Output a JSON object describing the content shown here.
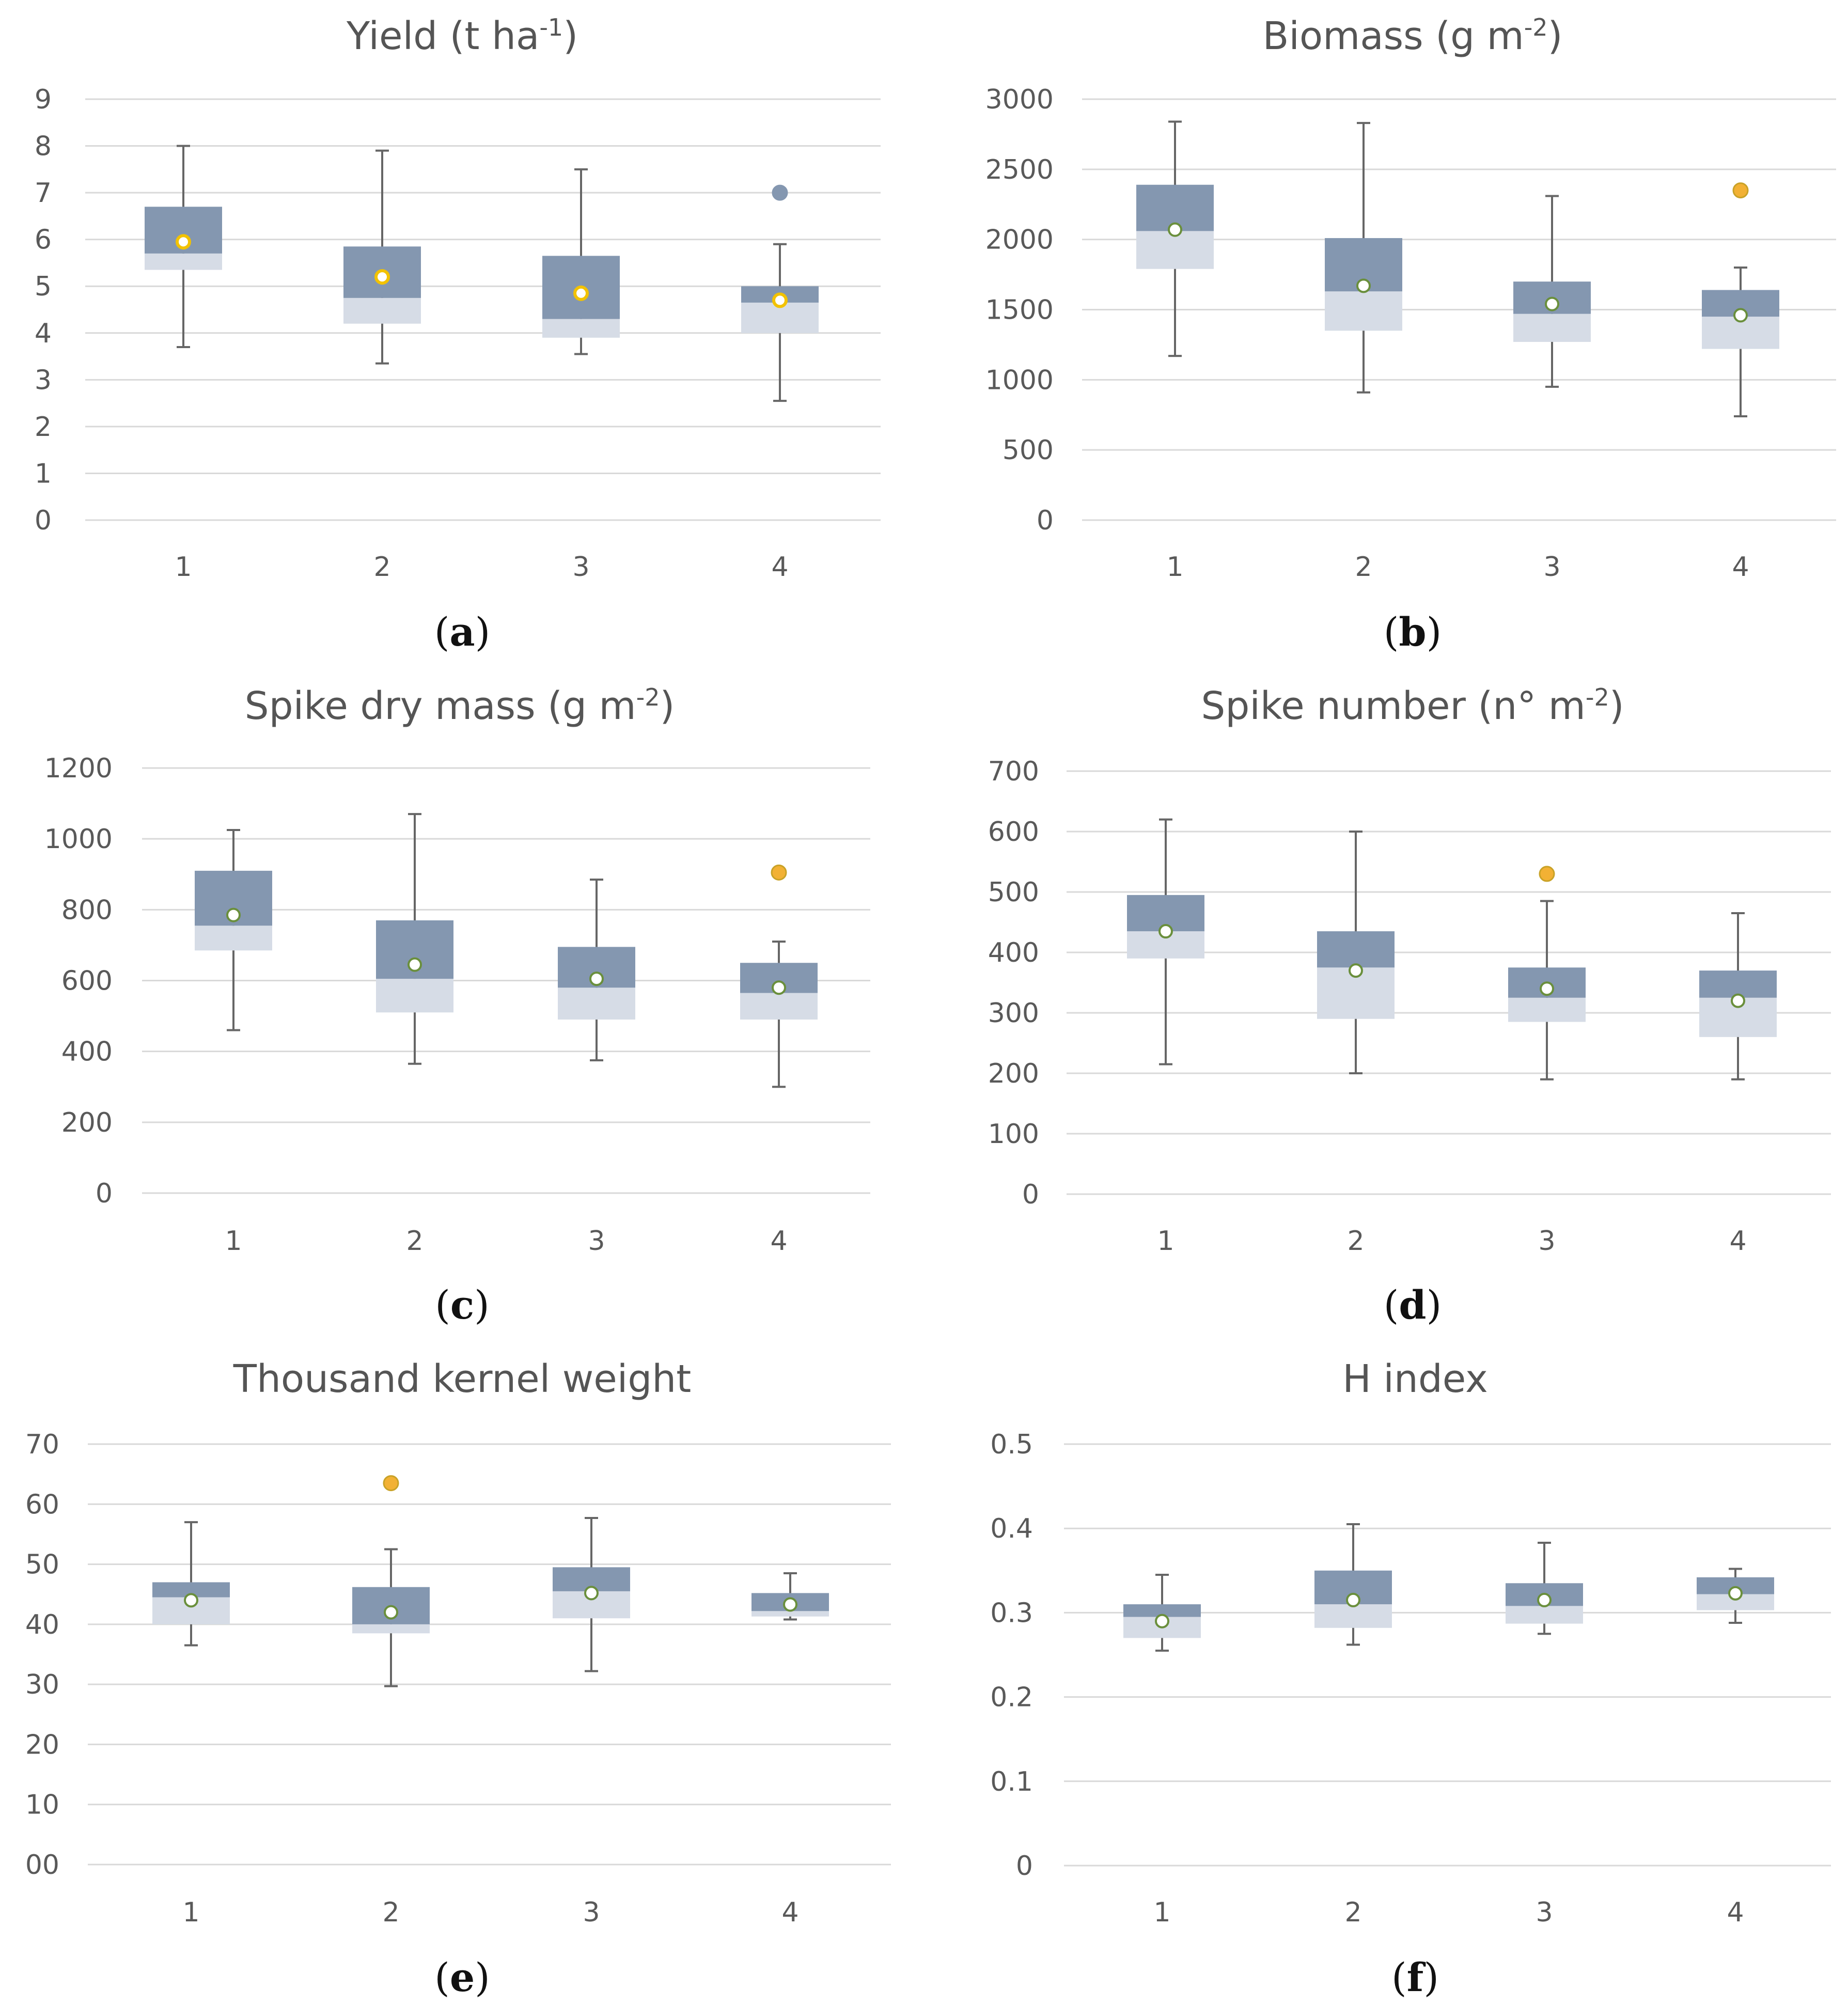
{
  "figure": {
    "background": "#ffffff",
    "colors": {
      "upper_box": "#8497b0",
      "lower_box": "#d6dce6",
      "grid": "#d9d9d9",
      "whisker": "#666666",
      "mean_yellow_fill": "#ffffff",
      "mean_yellow_ring": "#f2c200",
      "mean_green_fill": "#ffffff",
      "mean_green_ring": "#6a8f3c",
      "outlier_blue": "#8497b0",
      "outlier_orange": "#f2b134",
      "outlier_orange_ring": "#c9a227"
    }
  },
  "chart_data": [
    {
      "type": "box",
      "panel": "a",
      "panel_label": "a",
      "caption_open": "(",
      "caption_close": ")",
      "title": "Yield (t ha",
      "title_sup": "-1",
      "title_suffix": ")",
      "categories": [
        "1",
        "2",
        "3",
        "4"
      ],
      "y_ticks": [
        "0",
        "1",
        "2",
        "3",
        "4",
        "5",
        "6",
        "7",
        "8",
        "9"
      ],
      "y_tick_values": [
        0,
        1,
        2,
        3,
        4,
        5,
        6,
        7,
        8,
        9
      ],
      "ylim": [
        0,
        9
      ],
      "mean_style": "yellow",
      "series": [
        {
          "category": "1",
          "min": 3.7,
          "q1": 5.35,
          "median": 5.7,
          "q3": 6.7,
          "max": 8.0,
          "mean": 5.95
        },
        {
          "category": "2",
          "min": 3.35,
          "q1": 4.2,
          "median": 4.75,
          "q3": 5.85,
          "max": 7.9,
          "mean": 5.2
        },
        {
          "category": "3",
          "min": 3.55,
          "q1": 3.9,
          "median": 4.3,
          "q3": 5.65,
          "max": 7.5,
          "mean": 4.85
        },
        {
          "category": "4",
          "min": 2.55,
          "q1": 4.0,
          "median": 4.65,
          "q3": 5.0,
          "max": 5.9,
          "mean": 4.7
        }
      ],
      "outliers": [
        {
          "category": "4",
          "value": 7.0,
          "style": "blue"
        }
      ]
    },
    {
      "type": "box",
      "panel": "b",
      "panel_label": "b",
      "caption_open": "(",
      "caption_close": ")",
      "title": "Biomass (g m",
      "title_sup": "-2",
      "title_suffix": ")",
      "categories": [
        "1",
        "2",
        "3",
        "4"
      ],
      "y_ticks": [
        "0",
        "500",
        "1000",
        "1500",
        "2000",
        "2500",
        "3000"
      ],
      "y_tick_values": [
        0,
        500,
        1000,
        1500,
        2000,
        2500,
        3000
      ],
      "ylim": [
        0,
        3000
      ],
      "mean_style": "green",
      "series": [
        {
          "category": "1",
          "min": 1170,
          "q1": 1790,
          "median": 2060,
          "q3": 2390,
          "max": 2840,
          "mean": 2070
        },
        {
          "category": "2",
          "min": 910,
          "q1": 1350,
          "median": 1630,
          "q3": 2010,
          "max": 2830,
          "mean": 1670
        },
        {
          "category": "3",
          "min": 950,
          "q1": 1270,
          "median": 1470,
          "q3": 1700,
          "max": 2310,
          "mean": 1540
        },
        {
          "category": "4",
          "min": 740,
          "q1": 1220,
          "median": 1450,
          "q3": 1640,
          "max": 1800,
          "mean": 1460
        }
      ],
      "outliers": [
        {
          "category": "4",
          "value": 2350,
          "style": "orange"
        }
      ]
    },
    {
      "type": "box",
      "panel": "c",
      "panel_label": "c",
      "caption_open": "(",
      "caption_close": ")",
      "title": "Spike dry mass (g m",
      "title_sup": "-2",
      "title_suffix": ")",
      "categories": [
        "1",
        "2",
        "3",
        "4"
      ],
      "y_ticks": [
        "0",
        "200",
        "400",
        "600",
        "800",
        "1000",
        "1200"
      ],
      "y_tick_values": [
        0,
        200,
        400,
        600,
        800,
        1000,
        1200
      ],
      "ylim": [
        0,
        1200
      ],
      "mean_style": "green",
      "series": [
        {
          "category": "1",
          "min": 460,
          "q1": 685,
          "median": 755,
          "q3": 910,
          "max": 1025,
          "mean": 785
        },
        {
          "category": "2",
          "min": 365,
          "q1": 510,
          "median": 605,
          "q3": 770,
          "max": 1070,
          "mean": 645
        },
        {
          "category": "3",
          "min": 375,
          "q1": 490,
          "median": 580,
          "q3": 695,
          "max": 885,
          "mean": 605
        },
        {
          "category": "4",
          "min": 300,
          "q1": 490,
          "median": 565,
          "q3": 650,
          "max": 710,
          "mean": 580
        }
      ],
      "outliers": [
        {
          "category": "4",
          "value": 905,
          "style": "orange"
        }
      ]
    },
    {
      "type": "box",
      "panel": "d",
      "panel_label": "d",
      "caption_open": "(",
      "caption_close": ")",
      "title": "Spike number (n° m",
      "title_sup": "-2",
      "title_suffix": ")",
      "categories": [
        "1",
        "2",
        "3",
        "4"
      ],
      "y_ticks": [
        "0",
        "100",
        "200",
        "300",
        "400",
        "500",
        "600",
        "700"
      ],
      "y_tick_values": [
        0,
        100,
        200,
        300,
        400,
        500,
        600,
        700
      ],
      "ylim": [
        0,
        700
      ],
      "mean_style": "green",
      "series": [
        {
          "category": "1",
          "min": 215,
          "q1": 390,
          "median": 435,
          "q3": 495,
          "max": 620,
          "mean": 435
        },
        {
          "category": "2",
          "min": 200,
          "q1": 290,
          "median": 375,
          "q3": 435,
          "max": 600,
          "mean": 370
        },
        {
          "category": "3",
          "min": 190,
          "q1": 285,
          "median": 325,
          "q3": 375,
          "max": 485,
          "mean": 340
        },
        {
          "category": "4",
          "min": 190,
          "q1": 260,
          "median": 325,
          "q3": 370,
          "max": 465,
          "mean": 320
        }
      ],
      "outliers": [
        {
          "category": "3",
          "value": 530,
          "style": "orange"
        }
      ]
    },
    {
      "type": "box",
      "panel": "e",
      "panel_label": "e",
      "caption_open": "(",
      "caption_close": ")",
      "title": "Thousand kernel weight",
      "title_sup": "",
      "title_suffix": "",
      "categories": [
        "1",
        "2",
        "3",
        "4"
      ],
      "y_ticks": [
        "00",
        "10",
        "20",
        "30",
        "40",
        "50",
        "60",
        "70"
      ],
      "y_tick_values": [
        0,
        10,
        20,
        30,
        40,
        50,
        60,
        70
      ],
      "ylim": [
        0,
        70
      ],
      "mean_style": "green",
      "series": [
        {
          "category": "1",
          "min": 36.5,
          "q1": 40.0,
          "median": 44.5,
          "q3": 47.0,
          "max": 57.0,
          "mean": 44.0
        },
        {
          "category": "2",
          "min": 29.7,
          "q1": 38.5,
          "median": 40.0,
          "q3": 46.2,
          "max": 52.5,
          "mean": 42.0
        },
        {
          "category": "3",
          "min": 32.2,
          "q1": 41.0,
          "median": 45.5,
          "q3": 49.5,
          "max": 57.7,
          "mean": 45.2
        },
        {
          "category": "4",
          "min": 40.8,
          "q1": 41.3,
          "median": 42.2,
          "q3": 45.2,
          "max": 48.5,
          "mean": 43.3
        }
      ],
      "outliers": [
        {
          "category": "2",
          "value": 63.5,
          "style": "orange"
        }
      ]
    },
    {
      "type": "box",
      "panel": "f",
      "panel_label": "f",
      "caption_open": "(",
      "caption_close": ")",
      "title": "H index",
      "title_sup": "",
      "title_suffix": "",
      "categories": [
        "1",
        "2",
        "3",
        "4"
      ],
      "y_ticks": [
        "0",
        "0.1",
        "0.2",
        "0.3",
        "0.4",
        "0.5"
      ],
      "y_tick_values": [
        0,
        0.1,
        0.2,
        0.3,
        0.4,
        0.5
      ],
      "ylim": [
        0,
        0.5
      ],
      "mean_style": "green",
      "series": [
        {
          "category": "1",
          "min": 0.255,
          "q1": 0.27,
          "median": 0.295,
          "q3": 0.31,
          "max": 0.345,
          "mean": 0.29
        },
        {
          "category": "2",
          "min": 0.262,
          "q1": 0.282,
          "median": 0.31,
          "q3": 0.35,
          "max": 0.405,
          "mean": 0.315
        },
        {
          "category": "3",
          "min": 0.275,
          "q1": 0.287,
          "median": 0.308,
          "q3": 0.335,
          "max": 0.383,
          "mean": 0.315
        },
        {
          "category": "4",
          "min": 0.288,
          "q1": 0.303,
          "median": 0.322,
          "q3": 0.342,
          "max": 0.352,
          "mean": 0.323
        }
      ],
      "outliers": []
    }
  ]
}
